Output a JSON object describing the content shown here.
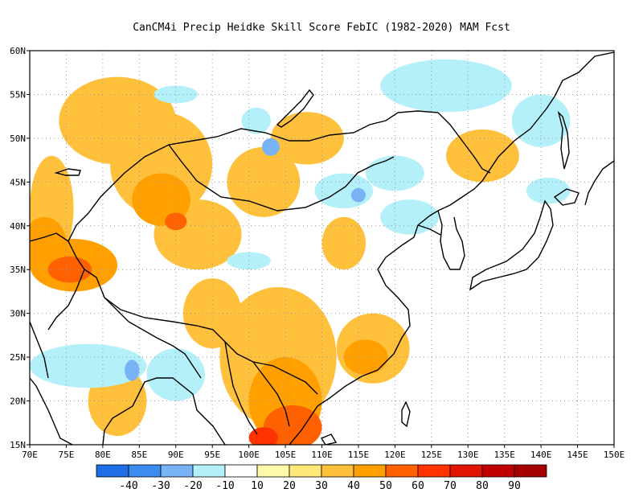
{
  "title": "CanCM4i Precip Heidke Skill Score FebIC (1982-2020) MAM Fcst",
  "map": {
    "lon_range": [
      70,
      150
    ],
    "lat_range": [
      15,
      60
    ],
    "lon_ticks": [
      "70E",
      "75E",
      "80E",
      "85E",
      "90E",
      "95E",
      "100E",
      "105E",
      "110E",
      "115E",
      "120E",
      "125E",
      "130E",
      "135E",
      "140E",
      "145E",
      "150E"
    ],
    "lat_ticks": [
      "15N",
      "20N",
      "25N",
      "30N",
      "35N",
      "40N",
      "45N",
      "50N",
      "55N",
      "60N"
    ]
  },
  "colorbar": {
    "colors": [
      "#1e6ee6",
      "#3c8cf0",
      "#78b4f5",
      "#b4f0fa",
      "#ffffff",
      "#fffaaa",
      "#ffe878",
      "#ffc03c",
      "#ffa000",
      "#ff6000",
      "#ff3200",
      "#e11400",
      "#c00000",
      "#a50000"
    ],
    "labels": [
      "-40",
      "-30",
      "-20",
      "-10",
      "10",
      "20",
      "30",
      "40",
      "50",
      "60",
      "70",
      "80",
      "90"
    ]
  },
  "shading": [
    {
      "level": 3,
      "lon": 73,
      "lat": 42,
      "rx": 3,
      "ry": 6
    },
    {
      "level": 3,
      "lon": 88,
      "lat": 47,
      "rx": 7,
      "ry": 6
    },
    {
      "level": 3,
      "lon": 82,
      "lat": 52,
      "rx": 8,
      "ry": 5
    },
    {
      "level": 3,
      "lon": 93,
      "lat": 39,
      "rx": 6,
      "ry": 4
    },
    {
      "level": 3,
      "lon": 102,
      "lat": 45,
      "rx": 5,
      "ry": 4
    },
    {
      "level": 3,
      "lon": 108,
      "lat": 50,
      "rx": 5,
      "ry": 3
    },
    {
      "level": 3,
      "lon": 104,
      "lat": 25,
      "rx": 8,
      "ry": 8
    },
    {
      "level": 3,
      "lon": 117,
      "lat": 26,
      "rx": 5,
      "ry": 4
    },
    {
      "level": 3,
      "lon": 82,
      "lat": 20,
      "rx": 4,
      "ry": 4
    },
    {
      "level": 3,
      "lon": 132,
      "lat": 48,
      "rx": 5,
      "ry": 3
    },
    {
      "level": 3,
      "lon": 95,
      "lat": 30,
      "rx": 4,
      "ry": 4
    },
    {
      "level": 3,
      "lon": 113,
      "lat": 38,
      "rx": 3,
      "ry": 3
    },
    {
      "level": 4,
      "lon": 76,
      "lat": 35.5,
      "rx": 6,
      "ry": 3
    },
    {
      "level": 4,
      "lon": 88,
      "lat": 43,
      "rx": 4,
      "ry": 3
    },
    {
      "level": 4,
      "lon": 105,
      "lat": 20,
      "rx": 5,
      "ry": 5
    },
    {
      "level": 4,
      "lon": 116,
      "lat": 25,
      "rx": 3,
      "ry": 2
    },
    {
      "level": 4,
      "lon": 72,
      "lat": 38,
      "rx": 3,
      "ry": 3
    },
    {
      "level": 5,
      "lon": 75.5,
      "lat": 35,
      "rx": 3,
      "ry": 1.5
    },
    {
      "level": 5,
      "lon": 106,
      "lat": 17,
      "rx": 4,
      "ry": 2.5
    },
    {
      "level": 5,
      "lon": 90,
      "lat": 40.5,
      "rx": 1.5,
      "ry": 1
    },
    {
      "level": 6,
      "lon": 102,
      "lat": 15.8,
      "rx": 2,
      "ry": 1.2
    },
    {
      "level": -1,
      "lon": 78,
      "lat": 24,
      "rx": 8,
      "ry": 2.5
    },
    {
      "level": -1,
      "lon": 90,
      "lat": 23,
      "rx": 4,
      "ry": 3
    },
    {
      "level": -1,
      "lon": 127,
      "lat": 56,
      "rx": 9,
      "ry": 3
    },
    {
      "level": -1,
      "lon": 140,
      "lat": 52,
      "rx": 4,
      "ry": 3
    },
    {
      "level": -1,
      "lon": 120,
      "lat": 46,
      "rx": 4,
      "ry": 2
    },
    {
      "level": -1,
      "lon": 113,
      "lat": 44,
      "rx": 4,
      "ry": 2
    },
    {
      "level": -1,
      "lon": 100,
      "lat": 36,
      "rx": 3,
      "ry": 1
    },
    {
      "level": -1,
      "lon": 122,
      "lat": 41,
      "rx": 4,
      "ry": 2
    },
    {
      "level": -1,
      "lon": 141,
      "lat": 44,
      "rx": 3,
      "ry": 1.5
    },
    {
      "level": -1,
      "lon": 90,
      "lat": 55,
      "rx": 3,
      "ry": 1
    },
    {
      "level": -1,
      "lon": 101,
      "lat": 52,
      "rx": 2,
      "ry": 1.5
    },
    {
      "level": -2,
      "lon": 103,
      "lat": 49,
      "rx": 1.2,
      "ry": 1
    },
    {
      "level": -2,
      "lon": 115,
      "lat": 43.5,
      "rx": 1,
      "ry": 0.8
    },
    {
      "level": -2,
      "lon": 84,
      "lat": 23.5,
      "rx": 1,
      "ry": 1.2
    }
  ]
}
